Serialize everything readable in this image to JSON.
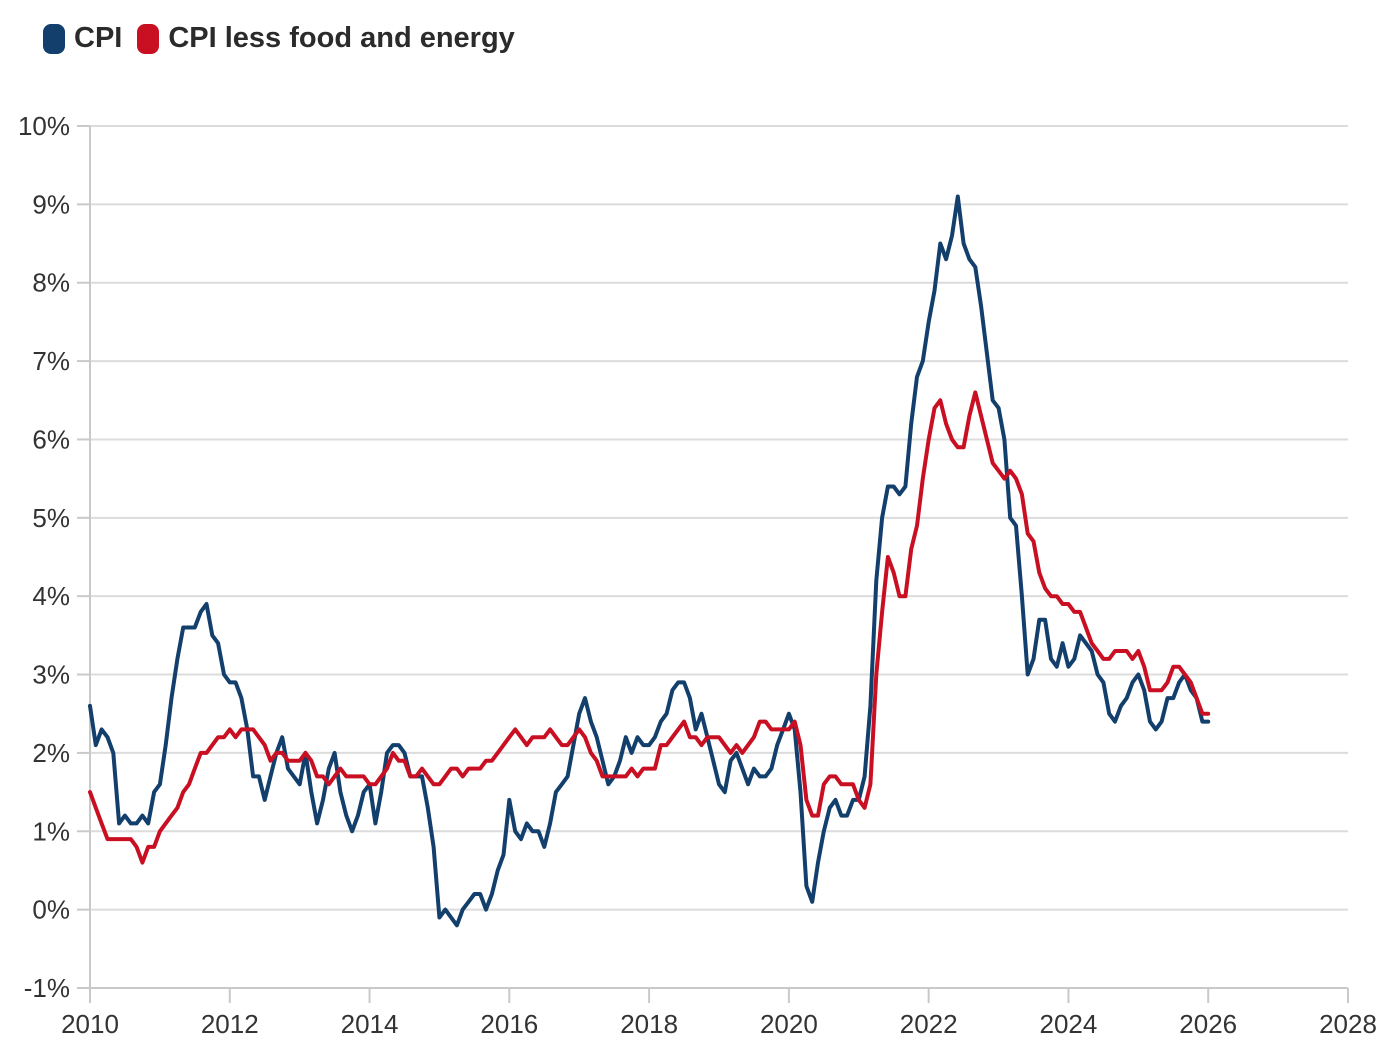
{
  "appearance": {
    "background": "#ffffff",
    "grid_color": "#dcdcdc",
    "axis_color": "#c9c9c9",
    "tick_label_color": "#333333",
    "legend_text_color": "#2b2b2b",
    "cpi_color": "#133f6c",
    "core_cpi_color": "#c90f22"
  },
  "chart_data": {
    "type": "line",
    "x_start_year": 2010,
    "points_per_year": 12,
    "xlim": [
      2010,
      2028
    ],
    "ylim": [
      -1,
      10
    ],
    "grid": true,
    "legend_position": "top-left",
    "x_ticks": [
      {
        "value": 2010,
        "label": "2010"
      },
      {
        "value": 2012,
        "label": "2012"
      },
      {
        "value": 2014,
        "label": "2014"
      },
      {
        "value": 2016,
        "label": "2016"
      },
      {
        "value": 2018,
        "label": "2018"
      },
      {
        "value": 2020,
        "label": "2020"
      },
      {
        "value": 2022,
        "label": "2022"
      },
      {
        "value": 2024,
        "label": "2024"
      },
      {
        "value": 2026,
        "label": "2026"
      },
      {
        "value": 2028,
        "label": "2028"
      }
    ],
    "y_ticks": [
      {
        "value": 10,
        "label": "10%"
      },
      {
        "value": 9,
        "label": "9%"
      },
      {
        "value": 8,
        "label": "8%"
      },
      {
        "value": 7,
        "label": "7%"
      },
      {
        "value": 6,
        "label": "6%"
      },
      {
        "value": 5,
        "label": "5%"
      },
      {
        "value": 4,
        "label": "4%"
      },
      {
        "value": 3,
        "label": "3%"
      },
      {
        "value": 2,
        "label": "2%"
      },
      {
        "value": 1,
        "label": "1%"
      },
      {
        "value": 0,
        "label": "0%"
      },
      {
        "value": -1,
        "label": "-1%"
      }
    ],
    "series": [
      {
        "name": "CPI",
        "id": "cpi",
        "color": "#133f6c",
        "values": [
          2.6,
          2.1,
          2.3,
          2.2,
          2.0,
          1.1,
          1.2,
          1.1,
          1.1,
          1.2,
          1.1,
          1.5,
          1.6,
          2.1,
          2.7,
          3.2,
          3.6,
          3.6,
          3.6,
          3.8,
          3.9,
          3.5,
          3.4,
          3.0,
          2.9,
          2.9,
          2.7,
          2.3,
          1.7,
          1.7,
          1.4,
          1.7,
          2.0,
          2.2,
          1.8,
          1.7,
          1.6,
          2.0,
          1.5,
          1.1,
          1.4,
          1.8,
          2.0,
          1.5,
          1.2,
          1.0,
          1.2,
          1.5,
          1.6,
          1.1,
          1.5,
          2.0,
          2.1,
          2.1,
          2.0,
          1.7,
          1.7,
          1.7,
          1.3,
          0.8,
          -0.1,
          0.0,
          -0.1,
          -0.2,
          0.0,
          0.1,
          0.2,
          0.2,
          0.0,
          0.2,
          0.5,
          0.7,
          1.4,
          1.0,
          0.9,
          1.1,
          1.0,
          1.0,
          0.8,
          1.1,
          1.5,
          1.6,
          1.7,
          2.1,
          2.5,
          2.7,
          2.4,
          2.2,
          1.9,
          1.6,
          1.7,
          1.9,
          2.2,
          2.0,
          2.2,
          2.1,
          2.1,
          2.2,
          2.4,
          2.5,
          2.8,
          2.9,
          2.9,
          2.7,
          2.3,
          2.5,
          2.2,
          1.9,
          1.6,
          1.5,
          1.9,
          2.0,
          1.8,
          1.6,
          1.8,
          1.7,
          1.7,
          1.8,
          2.1,
          2.3,
          2.5,
          2.3,
          1.5,
          0.3,
          0.1,
          0.6,
          1.0,
          1.3,
          1.4,
          1.2,
          1.2,
          1.4,
          1.4,
          1.7,
          2.6,
          4.2,
          5.0,
          5.4,
          5.4,
          5.3,
          5.4,
          6.2,
          6.8,
          7.0,
          7.5,
          7.9,
          8.5,
          8.3,
          8.6,
          9.1,
          8.5,
          8.3,
          8.2,
          7.7,
          7.1,
          6.5,
          6.4,
          6.0,
          5.0,
          4.9,
          4.0,
          3.0,
          3.2,
          3.7,
          3.7,
          3.2,
          3.1,
          3.4,
          3.1,
          3.2,
          3.5,
          3.4,
          3.3,
          3.0,
          2.9,
          2.5,
          2.4,
          2.6,
          2.7,
          2.9,
          3.0,
          2.8,
          2.4,
          2.3,
          2.4,
          2.7,
          2.7,
          2.9,
          3.0,
          2.8,
          2.7,
          2.4,
          2.4
        ]
      },
      {
        "name": "CPI less food and energy",
        "id": "core-cpi",
        "color": "#c90f22",
        "values": [
          1.5,
          1.3,
          1.1,
          0.9,
          0.9,
          0.9,
          0.9,
          0.9,
          0.8,
          0.6,
          0.8,
          0.8,
          1.0,
          1.1,
          1.2,
          1.3,
          1.5,
          1.6,
          1.8,
          2.0,
          2.0,
          2.1,
          2.2,
          2.2,
          2.3,
          2.2,
          2.3,
          2.3,
          2.3,
          2.2,
          2.1,
          1.9,
          2.0,
          2.0,
          1.9,
          1.9,
          1.9,
          2.0,
          1.9,
          1.7,
          1.7,
          1.6,
          1.7,
          1.8,
          1.7,
          1.7,
          1.7,
          1.7,
          1.6,
          1.6,
          1.7,
          1.8,
          2.0,
          1.9,
          1.9,
          1.7,
          1.7,
          1.8,
          1.7,
          1.6,
          1.6,
          1.7,
          1.8,
          1.8,
          1.7,
          1.8,
          1.8,
          1.8,
          1.9,
          1.9,
          2.0,
          2.1,
          2.2,
          2.3,
          2.2,
          2.1,
          2.2,
          2.2,
          2.2,
          2.3,
          2.2,
          2.1,
          2.1,
          2.2,
          2.3,
          2.2,
          2.0,
          1.9,
          1.7,
          1.7,
          1.7,
          1.7,
          1.7,
          1.8,
          1.7,
          1.8,
          1.8,
          1.8,
          2.1,
          2.1,
          2.2,
          2.3,
          2.4,
          2.2,
          2.2,
          2.1,
          2.2,
          2.2,
          2.2,
          2.1,
          2.0,
          2.1,
          2.0,
          2.1,
          2.2,
          2.4,
          2.4,
          2.3,
          2.3,
          2.3,
          2.3,
          2.4,
          2.1,
          1.4,
          1.2,
          1.2,
          1.6,
          1.7,
          1.7,
          1.6,
          1.6,
          1.6,
          1.4,
          1.3,
          1.6,
          3.0,
          3.8,
          4.5,
          4.3,
          4.0,
          4.0,
          4.6,
          4.9,
          5.5,
          6.0,
          6.4,
          6.5,
          6.2,
          6.0,
          5.9,
          5.9,
          6.3,
          6.6,
          6.3,
          6.0,
          5.7,
          5.6,
          5.5,
          5.6,
          5.5,
          5.3,
          4.8,
          4.7,
          4.3,
          4.1,
          4.0,
          4.0,
          3.9,
          3.9,
          3.8,
          3.8,
          3.6,
          3.4,
          3.3,
          3.2,
          3.2,
          3.3,
          3.3,
          3.3,
          3.2,
          3.3,
          3.1,
          2.8,
          2.8,
          2.8,
          2.9,
          3.1,
          3.1,
          3.0,
          2.9,
          2.7,
          2.5,
          2.5
        ]
      }
    ]
  }
}
